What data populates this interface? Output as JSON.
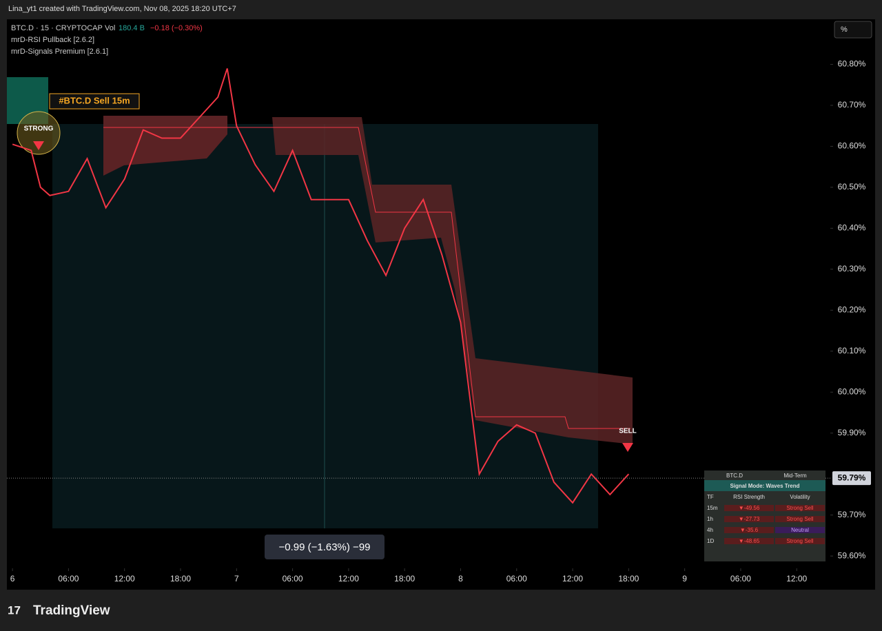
{
  "header": {
    "credit": "Lina_yt1 created with TradingView.com, Nov 08, 2025 18:20 UTC+7"
  },
  "legend": {
    "symbol": "BTC.D · 15 · CRYPTOCAP",
    "vol_label": "Vol",
    "vol_value": "180.4 B",
    "change": "−0.18 (−0.30%)",
    "indicators": [
      "mrD-RSI Pullback [2.6.2]",
      "mrD-Signals Premium [2.6.1]"
    ]
  },
  "scale_button": "%",
  "chart_data": {
    "type": "line",
    "color": "#f23645",
    "x": [
      0,
      2,
      3,
      4,
      6,
      8,
      10,
      12,
      14,
      16,
      18,
      20,
      22,
      23,
      24,
      26,
      28,
      30,
      32,
      34,
      36,
      38,
      40,
      42,
      44,
      46,
      48,
      50,
      52,
      54,
      56,
      58,
      60,
      62,
      64,
      66
    ],
    "values": [
      60.605,
      60.59,
      60.5,
      60.48,
      60.49,
      60.57,
      60.45,
      60.52,
      60.64,
      60.62,
      60.62,
      60.67,
      60.72,
      60.79,
      60.65,
      60.555,
      60.49,
      60.59,
      60.47,
      60.47,
      60.47,
      60.37,
      60.285,
      60.4,
      60.47,
      60.335,
      60.17,
      59.8,
      59.88,
      59.92,
      59.9,
      59.78,
      59.73,
      59.8,
      59.75,
      59.8
    ],
    "xlim": [
      -0.6,
      87.6
    ],
    "ylim": [
      59.57,
      60.91
    ],
    "xticks": [
      {
        "value": 0,
        "label": "6"
      },
      {
        "value": 6,
        "label": "06:00"
      },
      {
        "value": 12,
        "label": "12:00"
      },
      {
        "value": 18,
        "label": "18:00"
      },
      {
        "value": 24,
        "label": "7"
      },
      {
        "value": 30,
        "label": "06:00"
      },
      {
        "value": 36,
        "label": "12:00"
      },
      {
        "value": 42,
        "label": "18:00"
      },
      {
        "value": 48,
        "label": "8"
      },
      {
        "value": 54,
        "label": "06:00"
      },
      {
        "value": 60,
        "label": "12:00"
      },
      {
        "value": 66,
        "label": "18:00"
      },
      {
        "value": 72,
        "label": "9"
      },
      {
        "value": 78,
        "label": "06:00"
      },
      {
        "value": 84,
        "label": "12:00"
      }
    ],
    "yticks": [
      {
        "value": 60.8,
        "label": "60.80%"
      },
      {
        "value": 60.7,
        "label": "60.70%"
      },
      {
        "value": 60.6,
        "label": "60.60%"
      },
      {
        "value": 60.5,
        "label": "60.50%"
      },
      {
        "value": 60.4,
        "label": "60.40%"
      },
      {
        "value": 60.3,
        "label": "60.30%"
      },
      {
        "value": 60.2,
        "label": "60.20%"
      },
      {
        "value": 60.1,
        "label": "60.10%"
      },
      {
        "value": 60.0,
        "label": "60.00%"
      },
      {
        "value": 59.9,
        "label": "59.90%"
      },
      {
        "value": 59.7,
        "label": "59.70%"
      },
      {
        "value": 59.6,
        "label": "59.60%"
      }
    ],
    "last_price": {
      "value": 59.79,
      "label": "59.79%"
    }
  },
  "annotations": {
    "signal_tag": "#BTC.D Sell 15m",
    "strong_badge": "STRONG",
    "sell_label": "SELL",
    "measure": "−0.99 (−1.63%) −99"
  },
  "table": {
    "symbol": "BTC.D",
    "term": "Mid-Term",
    "mode": "Signal Mode: Waves Trend",
    "columns": [
      "TF",
      "RSI Strength",
      "Volatility"
    ],
    "rows": [
      [
        "15m",
        "▼-49.56",
        "Strong Sell"
      ],
      [
        "1h",
        "▼-27.73",
        "Strong Sell"
      ],
      [
        "4h",
        "▼-35.6",
        "Neutral"
      ],
      [
        "1D",
        "▼-48.65",
        "Strong Sell"
      ]
    ]
  },
  "footer": {
    "brand": "TradingView"
  }
}
